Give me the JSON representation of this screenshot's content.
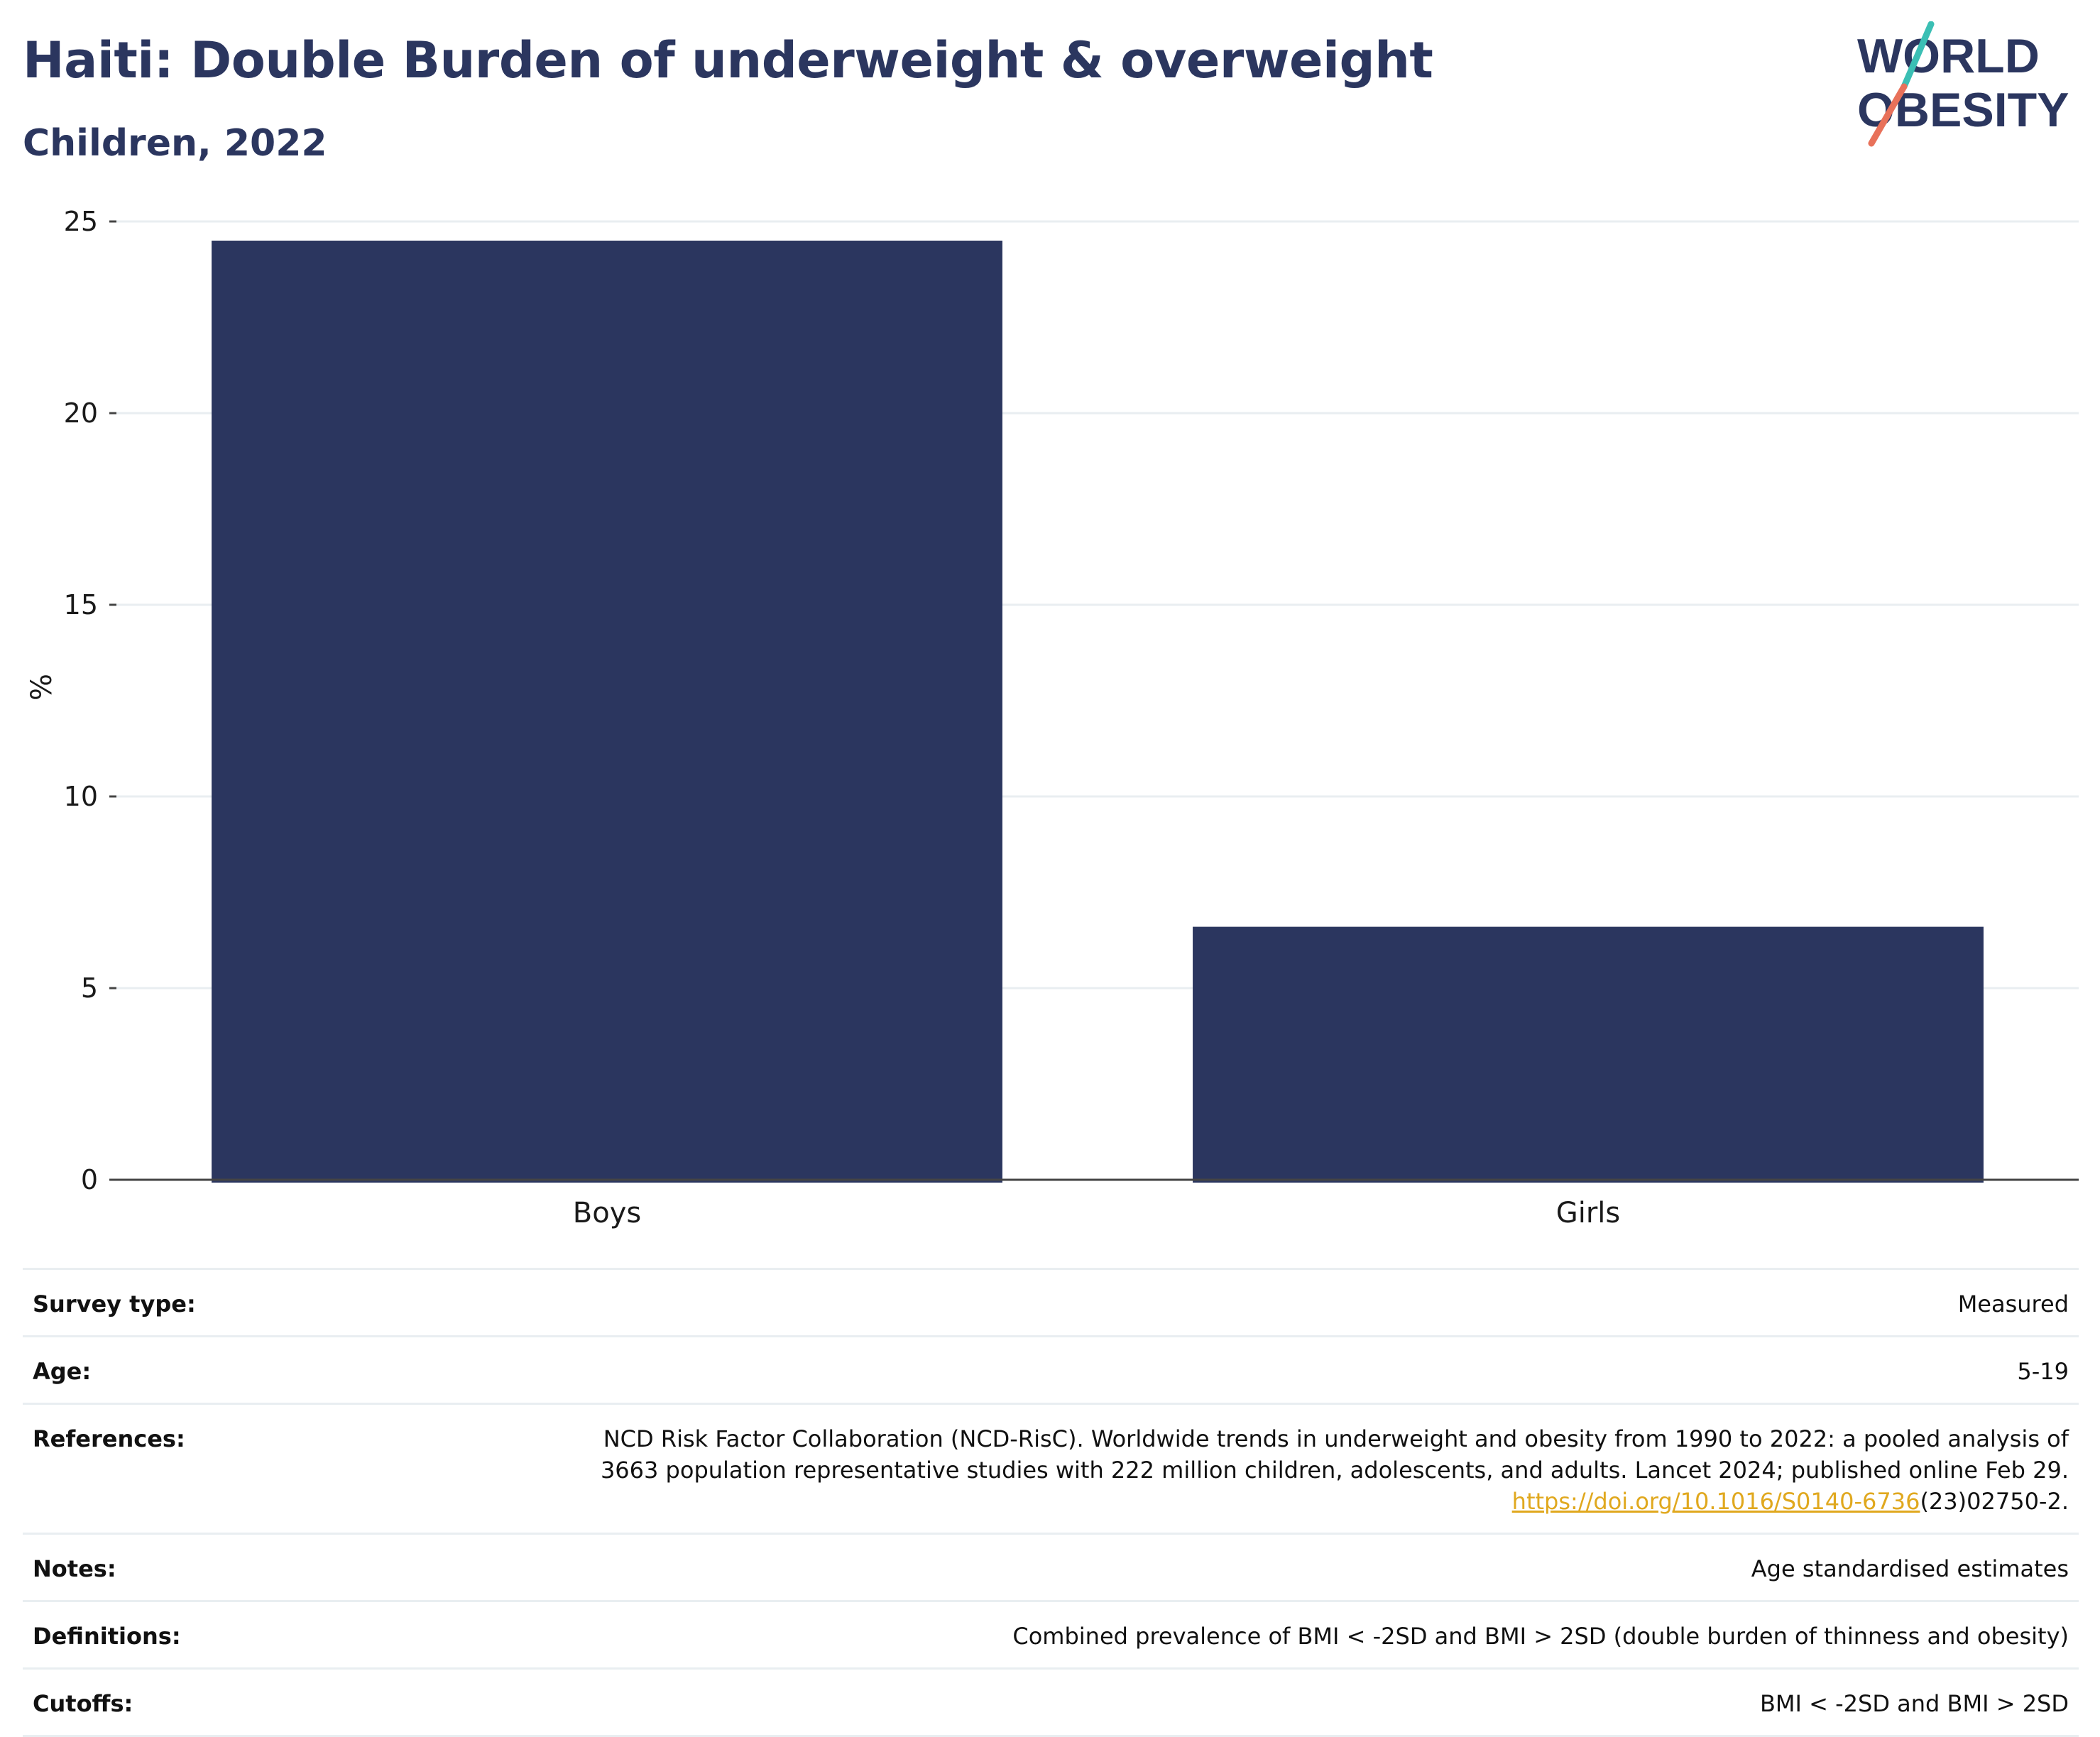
{
  "header": {
    "title": "Haiti: Double Burden of underweight & overweight",
    "subtitle": "Children, 2022"
  },
  "logo": {
    "line1": "WORLD",
    "line2": "OBESITY",
    "colors": {
      "text": "#2b365f",
      "slash_top": "#3bbfb4",
      "slash_bottom": "#e8715a"
    }
  },
  "colors": {
    "bar": "#2b365f",
    "title": "#2b365f",
    "grid": "#e9eef1",
    "link": "#e0a81e"
  },
  "chart_data": {
    "type": "bar",
    "categories": [
      "Boys",
      "Girls"
    ],
    "values": [
      24.5,
      6.6
    ],
    "yticks": [
      "0",
      "5",
      "10",
      "15",
      "20",
      "25"
    ],
    "ylim": [
      0,
      25
    ],
    "ylabel": "%",
    "xlabel": "",
    "grid": true
  },
  "meta": {
    "rows": [
      {
        "label": "Survey type:",
        "value": "Measured"
      },
      {
        "label": "Age:",
        "value": "5-19"
      },
      {
        "label": "References:",
        "value_line1": "NCD Risk Factor Collaboration (NCD-RisC). Worldwide trends in underweight and obesity from 1990 to 2022: a pooled analysis of",
        "value_line2": "3663 population representative studies with 222 million children, adolescents, and adults. Lancet 2024; published online Feb 29.",
        "link_text": "https://doi.org/10.1016/S0140-6736",
        "link_suffix": "(23)02750-2."
      },
      {
        "label": "Notes:",
        "value": "Age standardised estimates"
      },
      {
        "label": "Definitions:",
        "value": "Combined prevalence of BMI < -2SD and BMI > 2SD (double burden of thinness and obesity)"
      },
      {
        "label": "Cutoffs:",
        "value": "BMI < -2SD and BMI > 2SD"
      }
    ]
  }
}
